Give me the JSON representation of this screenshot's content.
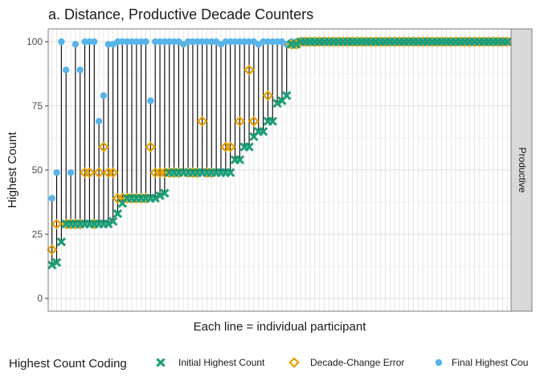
{
  "colors": {
    "initial": "#1b9e77",
    "decade": "#e69f00",
    "final": "#56b4e9",
    "stem": "#000000",
    "grid_major": "#e5e5e5",
    "grid_minor": "#f2f2f2",
    "panel_border": "#7f7f7f",
    "strip_fill": "#d9d9d9"
  },
  "chart_data": {
    "type": "scatter",
    "title": "a. Distance, Productive Decade Counters",
    "xlabel": "Each line = individual participant",
    "ylabel": "Highest Count",
    "ylim": [
      0,
      100
    ],
    "yticks": [
      0,
      25,
      50,
      75,
      100
    ],
    "grid": true,
    "facet_label": "Productive",
    "legend": {
      "title": "Highest Count Coding",
      "position": "bottom",
      "items": [
        {
          "key": "initial",
          "label": "Initial Highest Count",
          "shape": "x-cross"
        },
        {
          "key": "decade",
          "label": "Decade-Change Error",
          "shape": "open-diamond"
        },
        {
          "key": "final",
          "label": "Final Highest Cou",
          "shape": "filled-circle"
        }
      ]
    },
    "participant_count": 98,
    "series": [
      {
        "name": "Initial Highest Count",
        "key": "initial",
        "values": [
          13,
          14,
          22,
          29,
          29,
          29,
          29,
          29,
          29,
          29,
          29,
          29,
          29,
          30,
          33,
          37,
          39,
          39,
          39,
          39,
          39,
          39,
          39,
          40,
          41,
          49,
          49,
          49,
          49,
          49,
          49,
          49,
          49,
          49,
          49,
          49,
          49,
          49,
          49,
          54,
          54,
          59,
          59,
          63,
          65,
          65,
          69,
          69,
          76,
          77,
          79,
          99,
          99,
          100,
          100,
          100,
          100,
          100,
          100,
          100,
          100,
          100,
          100,
          100,
          100,
          100,
          100,
          100,
          100,
          100,
          100,
          100,
          100,
          100,
          100,
          100,
          100,
          100,
          100,
          100,
          100,
          100,
          100,
          100,
          100,
          100,
          100,
          100,
          100,
          100,
          100,
          100,
          100,
          100,
          100,
          100,
          100,
          100
        ]
      },
      {
        "name": "Decade-Change Error",
        "key": "decade",
        "values": [
          19,
          29,
          null,
          29,
          29,
          29,
          29,
          49,
          49,
          29,
          49,
          59,
          49,
          49,
          39,
          39,
          39,
          39,
          39,
          39,
          39,
          59,
          49,
          49,
          49,
          49,
          49,
          49,
          null,
          49,
          49,
          49,
          69,
          49,
          49,
          null,
          null,
          59,
          59,
          null,
          69,
          null,
          89,
          69,
          null,
          null,
          79,
          null,
          null,
          null,
          null,
          99,
          99,
          100,
          100,
          100,
          100,
          100,
          100,
          100,
          100,
          100,
          100,
          100,
          100,
          100,
          100,
          100,
          100,
          100,
          100,
          100,
          100,
          100,
          100,
          100,
          100,
          100,
          100,
          100,
          100,
          100,
          100,
          100,
          100,
          100,
          100,
          100,
          100,
          100,
          100,
          100,
          100,
          100,
          100,
          100,
          100,
          100
        ]
      },
      {
        "name": "Final Highest Count",
        "key": "final",
        "values": [
          39,
          49,
          100,
          89,
          49,
          99,
          89,
          100,
          100,
          100,
          69,
          79,
          99,
          99,
          100,
          100,
          100,
          100,
          100,
          100,
          100,
          77,
          100,
          100,
          100,
          100,
          100,
          100,
          99,
          100,
          100,
          100,
          100,
          100,
          100,
          100,
          99,
          100,
          100,
          100,
          100,
          100,
          100,
          100,
          99,
          100,
          100,
          100,
          100,
          100,
          99,
          100,
          100,
          100,
          100,
          100,
          100,
          100,
          100,
          100,
          100,
          100,
          100,
          100,
          100,
          100,
          100,
          100,
          100,
          100,
          100,
          100,
          100,
          100,
          100,
          100,
          100,
          100,
          100,
          100,
          100,
          100,
          100,
          100,
          100,
          100,
          100,
          100,
          100,
          100,
          100,
          100,
          100,
          100,
          100,
          100,
          100,
          100
        ]
      }
    ]
  }
}
